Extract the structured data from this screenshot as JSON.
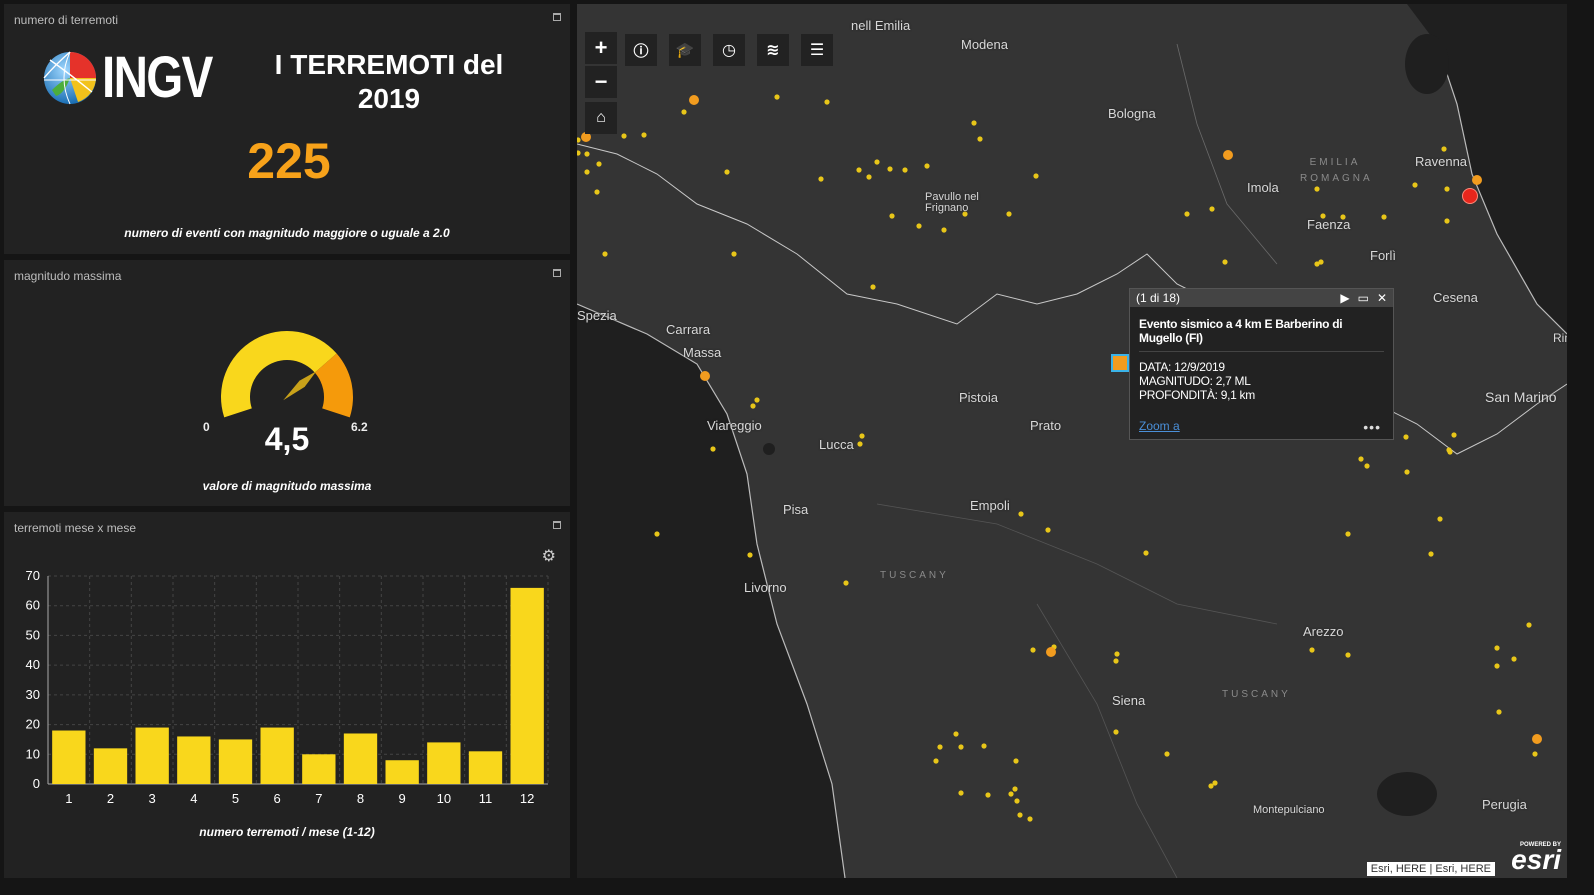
{
  "panel_count": {
    "title": "numero di terremoti",
    "logo_text": "INGV",
    "heading": "I TERREMOTI del 2019",
    "value": "225",
    "caption": "numero di eventi con magnitudo maggiore o uguale a 2.0"
  },
  "panel_gauge": {
    "title": "magnitudo massima",
    "min": "0",
    "max": "6.2",
    "value": "4,5",
    "value_numeric": 4.5,
    "caption": "valore di magnitudo massima"
  },
  "panel_chart": {
    "title": "terremoti mese x mese",
    "caption": "numero terremoti / mese (1-12)"
  },
  "chart_data": {
    "type": "bar",
    "categories": [
      "1",
      "2",
      "3",
      "4",
      "5",
      "6",
      "7",
      "8",
      "9",
      "10",
      "11",
      "12"
    ],
    "values": [
      18,
      12,
      19,
      16,
      15,
      19,
      10,
      17,
      8,
      14,
      11,
      66
    ],
    "ylim": [
      0,
      70
    ],
    "yticks": [
      0,
      10,
      20,
      30,
      40,
      50,
      60,
      70
    ],
    "grid": true,
    "bar_color": "#f9d71c",
    "xlabel": "numero terremoti / mese (1-12)"
  },
  "map": {
    "controls": {
      "zoom_in": "+",
      "zoom_out": "−"
    },
    "toolbar_icons": [
      "info-icon",
      "education-icon",
      "clock-icon",
      "layers-icon",
      "list-icon"
    ],
    "places": [
      "nell Emilia",
      "Modena",
      "Bologna",
      "Pavullo nel Frignano",
      "Imola",
      "Ravenna",
      "Faenza",
      "Forlì",
      "Cesena",
      "Spezia",
      "Carrara",
      "Massa",
      "Pistoia",
      "Prato",
      "Viareggio",
      "Lucca",
      "Empoli",
      "Pisa",
      "Livorno",
      "Arezzo",
      "Siena",
      "Montepulciano",
      "Perugia",
      "San Marino",
      "Rimini"
    ],
    "regions": [
      "EMILIA ROMAGNA",
      "TUSCANY",
      "TUSCANY"
    ],
    "popup": {
      "counter": "(1 di 18)",
      "title": "Evento sismico a 4 km E Barberino di Mugello (FI)",
      "data_line": "DATA: 12/9/2019",
      "magnitudo_line": "MAGNITUDO: 2,7 ML",
      "profondita_line": "PROFONDITÀ: 9,1 km",
      "zoom_link": "Zoom a",
      "more": "•••"
    },
    "attribution": "Esri, HERE | Esri, HERE",
    "esri_powered": "POWERED BY",
    "esri_name": "esri",
    "colors": {
      "small_event": "#e8c619",
      "medium_event": "#f29c1f",
      "large_event": "#e8261c"
    }
  }
}
